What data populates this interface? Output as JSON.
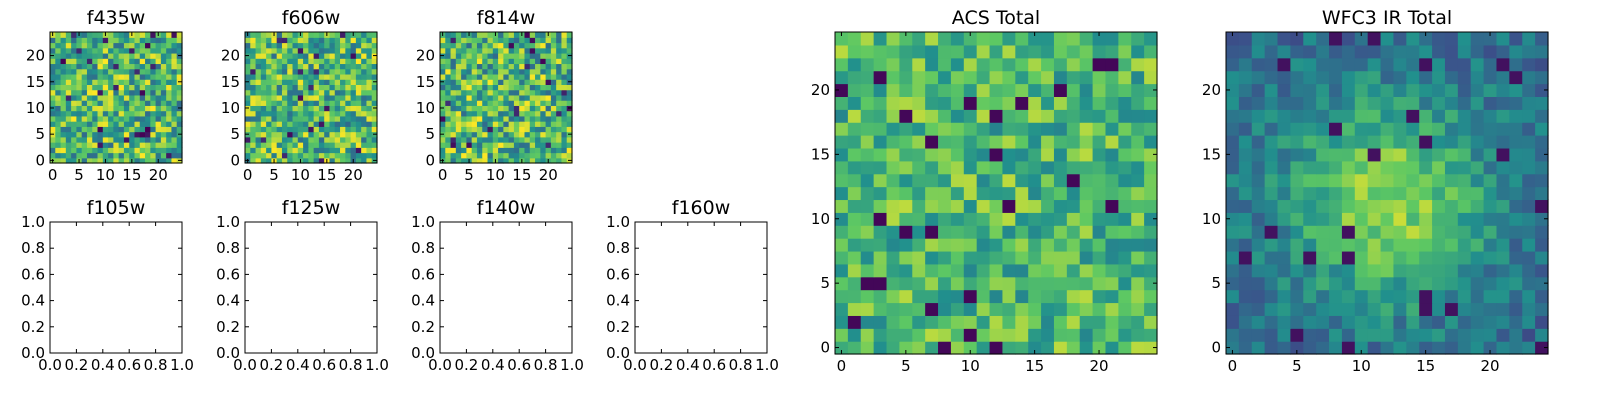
{
  "chart_data": [
    {
      "type": "heatmap",
      "title": "f435w",
      "x_ticks": [
        "0",
        "5",
        "10",
        "15",
        "20"
      ],
      "y_ticks": [
        "0",
        "5",
        "10",
        "15",
        "20"
      ],
      "xlim": [
        -0.5,
        24.5
      ],
      "ylim": [
        -0.5,
        24.5
      ],
      "grid": false,
      "colormap": "viridis",
      "values": "25x25 pixel cutout (individual values not legible)"
    },
    {
      "type": "heatmap",
      "title": "f606w",
      "x_ticks": [
        "0",
        "5",
        "10",
        "15",
        "20"
      ],
      "y_ticks": [
        "0",
        "5",
        "10",
        "15",
        "20"
      ],
      "xlim": [
        -0.5,
        24.5
      ],
      "ylim": [
        -0.5,
        24.5
      ],
      "grid": false,
      "colormap": "viridis",
      "values": "25x25 pixel cutout (individual values not legible)"
    },
    {
      "type": "heatmap",
      "title": "f814w",
      "x_ticks": [
        "0",
        "5",
        "10",
        "15",
        "20"
      ],
      "y_ticks": [
        "0",
        "5",
        "10",
        "15",
        "20"
      ],
      "xlim": [
        -0.5,
        24.5
      ],
      "ylim": [
        -0.5,
        24.5
      ],
      "grid": false,
      "colormap": "viridis",
      "values": "25x25 pixel cutout (individual values not legible)"
    },
    {
      "type": "scatter",
      "title": "f105w",
      "x_ticks": [
        "0.0",
        "0.2",
        "0.4",
        "0.6",
        "0.8",
        "1.0"
      ],
      "y_ticks": [
        "0.0",
        "0.2",
        "0.4",
        "0.6",
        "0.8",
        "1.0"
      ],
      "xlim": [
        0,
        1
      ],
      "ylim": [
        0,
        1
      ],
      "series": []
    },
    {
      "type": "scatter",
      "title": "f125w",
      "x_ticks": [
        "0.0",
        "0.2",
        "0.4",
        "0.6",
        "0.8",
        "1.0"
      ],
      "y_ticks": [
        "0.0",
        "0.2",
        "0.4",
        "0.6",
        "0.8",
        "1.0"
      ],
      "xlim": [
        0,
        1
      ],
      "ylim": [
        0,
        1
      ],
      "series": []
    },
    {
      "type": "scatter",
      "title": "f140w",
      "x_ticks": [
        "0.0",
        "0.2",
        "0.4",
        "0.6",
        "0.8",
        "1.0"
      ],
      "y_ticks": [
        "0.0",
        "0.2",
        "0.4",
        "0.6",
        "0.8",
        "1.0"
      ],
      "xlim": [
        0,
        1
      ],
      "ylim": [
        0,
        1
      ],
      "series": []
    },
    {
      "type": "scatter",
      "title": "f160w",
      "x_ticks": [
        "0.0",
        "0.2",
        "0.4",
        "0.6",
        "0.8",
        "1.0"
      ],
      "y_ticks": [
        "0.0",
        "0.2",
        "0.4",
        "0.6",
        "0.8",
        "1.0"
      ],
      "xlim": [
        0,
        1
      ],
      "ylim": [
        0,
        1
      ],
      "series": []
    },
    {
      "type": "heatmap",
      "title": "ACS Total",
      "x_ticks": [
        "0",
        "5",
        "10",
        "15",
        "20"
      ],
      "y_ticks": [
        "0",
        "5",
        "10",
        "15",
        "20"
      ],
      "xlim": [
        -0.5,
        24.5
      ],
      "ylim": [
        -0.5,
        24.5
      ],
      "grid": false,
      "colormap": "viridis",
      "values": "25x25 pixel cutout (individual values not legible)"
    },
    {
      "type": "heatmap",
      "title": "WFC3 IR Total",
      "x_ticks": [
        "0",
        "5",
        "10",
        "15",
        "20"
      ],
      "y_ticks": [
        "0",
        "5",
        "10",
        "15",
        "20"
      ],
      "xlim": [
        -0.5,
        24.5
      ],
      "ylim": [
        -0.5,
        24.5
      ],
      "grid": false,
      "colormap": "viridis",
      "values": "25x25 pixel cutout (individual values not legible)"
    }
  ],
  "colors": {
    "viridis": [
      "#440154",
      "#3b528b",
      "#21908d",
      "#5dc863",
      "#fde725"
    ],
    "axes": "#000000",
    "background": "#ffffff"
  }
}
